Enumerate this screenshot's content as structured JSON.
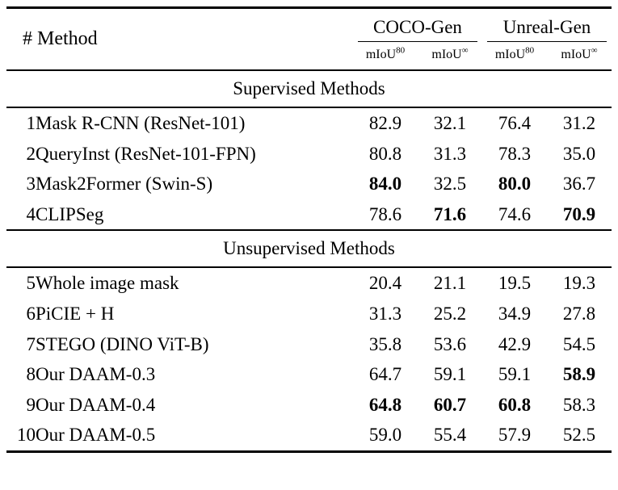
{
  "table": {
    "header": {
      "method_label": "# Method",
      "groups": [
        {
          "label": "COCO-Gen"
        },
        {
          "label": "Unreal-Gen"
        }
      ],
      "subheaders": [
        {
          "base": "mIoU",
          "sup": "80"
        },
        {
          "base": "mIoU",
          "sup": "∞"
        },
        {
          "base": "mIoU",
          "sup": "80"
        },
        {
          "base": "mIoU",
          "sup": "∞"
        }
      ]
    },
    "sections": {
      "supervised": "Supervised Methods",
      "unsupervised": "Unsupervised Methods"
    },
    "rows": [
      {
        "num": "1",
        "method": "Mask R-CNN (ResNet-101)",
        "values": [
          "82.9",
          "32.1",
          "76.4",
          "31.2"
        ]
      },
      {
        "num": "2",
        "method": "QueryInst (ResNet-101-FPN)",
        "values": [
          "80.8",
          "31.3",
          "78.3",
          "35.0"
        ]
      },
      {
        "num": "3",
        "method": "Mask2Former (Swin-S)",
        "values": [
          "84.0",
          "32.5",
          "80.0",
          "36.7"
        ]
      },
      {
        "num": "4",
        "method": "CLIPSeg",
        "values": [
          "78.6",
          "71.6",
          "74.6",
          "70.9"
        ]
      },
      {
        "num": "5",
        "method": "Whole image mask",
        "values": [
          "20.4",
          "21.1",
          "19.5",
          "19.3"
        ]
      },
      {
        "num": "6",
        "method": "PiCIE + H",
        "values": [
          "31.3",
          "25.2",
          "34.9",
          "27.8"
        ]
      },
      {
        "num": "7",
        "method": "STEGO (DINO ViT-B)",
        "values": [
          "35.8",
          "53.6",
          "42.9",
          "54.5"
        ]
      },
      {
        "num": "8",
        "method": "Our DAAM-0.3",
        "values": [
          "64.7",
          "59.1",
          "59.1",
          "58.9"
        ]
      },
      {
        "num": "9",
        "method": "Our DAAM-0.4",
        "values": [
          "64.8",
          "60.7",
          "60.8",
          "58.3"
        ]
      },
      {
        "num": "10",
        "method": "Our DAAM-0.5",
        "values": [
          "59.0",
          "55.4",
          "57.9",
          "52.5"
        ]
      }
    ],
    "colors": {
      "text": "#000000",
      "background": "#ffffff",
      "rule": "#000000"
    }
  }
}
